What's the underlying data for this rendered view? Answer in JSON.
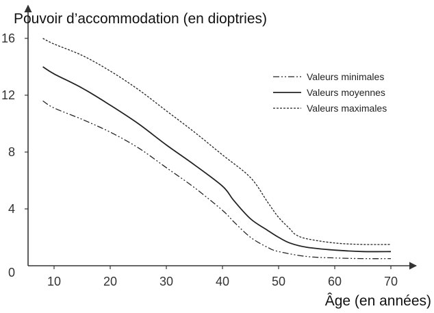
{
  "chart_data": {
    "type": "line",
    "ylabel": "Pouvoir d’accommodation (en dioptries)",
    "xlabel": "Âge (en années)",
    "xlim": [
      5,
      72
    ],
    "ylim": [
      0,
      17
    ],
    "xticks": [
      10,
      20,
      30,
      40,
      50,
      60,
      70
    ],
    "yticks": [
      0,
      4,
      8,
      12,
      16
    ],
    "grid": false,
    "legend_position": "top-right",
    "series": [
      {
        "name": "Valeurs minimales",
        "style": "dash-dot-dot",
        "x": [
          8,
          10,
          15,
          20,
          25,
          30,
          35,
          40,
          42,
          45,
          48,
          50,
          55,
          60,
          65,
          70
        ],
        "y": [
          11.6,
          11.1,
          10.3,
          9.4,
          8.3,
          6.9,
          5.5,
          3.9,
          3.1,
          2.0,
          1.3,
          1.0,
          0.65,
          0.55,
          0.5,
          0.5
        ]
      },
      {
        "name": "Valeurs moyennes",
        "style": "solid",
        "x": [
          8,
          10,
          15,
          20,
          25,
          30,
          35,
          40,
          42,
          45,
          48,
          50,
          52,
          55,
          60,
          65,
          70
        ],
        "y": [
          14.0,
          13.5,
          12.5,
          11.3,
          10.0,
          8.5,
          7.1,
          5.6,
          4.6,
          3.3,
          2.5,
          2.0,
          1.6,
          1.3,
          1.1,
          1.0,
          1.0
        ]
      },
      {
        "name": "Valeurs maximales",
        "style": "dashed",
        "x": [
          8,
          10,
          15,
          20,
          25,
          30,
          35,
          40,
          45,
          48,
          50,
          52,
          53,
          55,
          60,
          65,
          70
        ],
        "y": [
          16.0,
          15.6,
          14.8,
          13.7,
          12.4,
          10.9,
          9.4,
          7.8,
          6.2,
          4.5,
          3.4,
          2.6,
          2.2,
          1.9,
          1.6,
          1.5,
          1.5
        ]
      }
    ]
  }
}
